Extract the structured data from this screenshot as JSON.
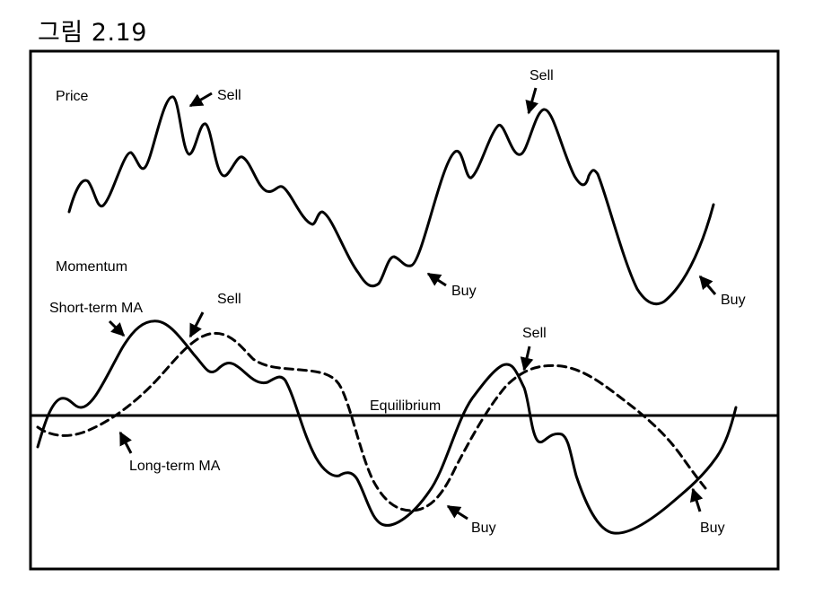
{
  "title": "그림 2.19",
  "chart_data": {
    "type": "line",
    "title": "그림 2.19",
    "panels": [
      {
        "name": "Price",
        "series": [
          {
            "name": "Price",
            "style": "solid",
            "x": [
              0,
              2,
              4,
              6,
              8,
              10,
              12,
              14,
              16,
              18,
              20,
              22,
              24,
              26,
              28,
              30,
              32,
              34,
              36,
              38,
              40,
              42,
              44,
              46,
              48,
              50,
              52,
              54,
              56,
              58,
              60,
              62,
              64,
              66,
              68,
              70,
              72,
              74,
              76,
              78,
              80,
              82,
              84,
              86,
              88,
              90,
              92,
              94,
              96,
              98,
              100
            ],
            "y": [
              52,
              62,
              54,
              64,
              72,
              66,
              80,
              90,
              70,
              84,
              74,
              70,
              64,
              70,
              60,
              56,
              58,
              46,
              40,
              44,
              30,
              18,
              20,
              26,
              22,
              48,
              68,
              60,
              74,
              84,
              76,
              88,
              80,
              66,
              70,
              40,
              18,
              10,
              14,
              22,
              30,
              36,
              40,
              28,
              18,
              8,
              4,
              6,
              12,
              20,
              30
            ]
          }
        ],
        "annotations": [
          {
            "label": "Sell",
            "at_x": 17
          },
          {
            "label": "Buy",
            "at_x": 53
          },
          {
            "label": "Sell",
            "at_x": 72
          },
          {
            "label": "Buy",
            "at_x": 97
          }
        ]
      },
      {
        "name": "Momentum",
        "equilibrium": 0,
        "series": [
          {
            "name": "Short-term MA",
            "style": "solid",
            "x": [
              0,
              4,
              8,
              12,
              16,
              20,
              24,
              28,
              32,
              36,
              40,
              44,
              48,
              52,
              56,
              60,
              64,
              68,
              72,
              76,
              80,
              84,
              88,
              92,
              96,
              100
            ],
            "y": [
              -1.1,
              0.2,
              0.1,
              0.9,
              1.4,
              1.0,
              0.5,
              0.7,
              0.5,
              0.3,
              -0.8,
              -1.0,
              -1.6,
              -1.2,
              0.0,
              0.8,
              0.8,
              -0.4,
              -0.5,
              -1.5,
              -1.7,
              -1.6,
              -1.3,
              -1.0,
              -0.4,
              0.1
            ]
          },
          {
            "name": "Long-term MA",
            "style": "dashed",
            "x": [
              0,
              4,
              8,
              12,
              16,
              20,
              24,
              28,
              32,
              36,
              40,
              44,
              48,
              52,
              56,
              60,
              64,
              68,
              72,
              76,
              80,
              84,
              88,
              92,
              96,
              100
            ],
            "y": [
              -0.5,
              -0.5,
              -0.3,
              0.1,
              0.5,
              0.9,
              0.9,
              0.7,
              0.5,
              0.4,
              -0.2,
              -1.0,
              -1.2,
              -1.1,
              -0.5,
              0.1,
              0.5,
              0.6,
              0.5,
              0.3,
              0.0,
              -0.4,
              -0.7,
              -0.9,
              -1.1,
              -1.0
            ]
          }
        ],
        "labels": {
          "equilibrium": "Equilibrium",
          "short_ma": "Short-term MA",
          "long_ma": "Long-term MA"
        },
        "annotations": [
          {
            "label": "Sell",
            "at_x": 20
          },
          {
            "label": "Buy",
            "at_x": 52
          },
          {
            "label": "Sell",
            "at_x": 67
          },
          {
            "label": "Buy",
            "at_x": 90
          }
        ]
      }
    ],
    "text": {
      "price": "Price",
      "momentum": "Momentum",
      "sell": "Sell",
      "buy": "Buy"
    }
  }
}
